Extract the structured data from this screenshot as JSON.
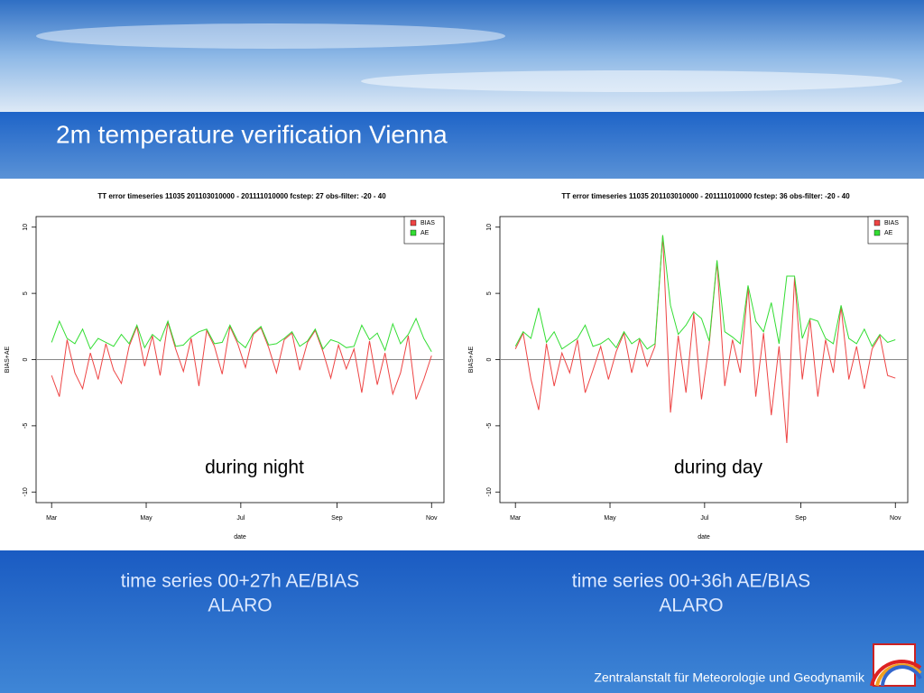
{
  "title": "2m temperature verification Vienna",
  "captions": [
    [
      "time series 00+27h AE/BIAS",
      "ALARO"
    ],
    [
      "time series 00+36h AE/BIAS",
      "ALARO"
    ]
  ],
  "footer": "Zentralanstalt für Meteorologie und Geodynamik",
  "chart_data": [
    {
      "type": "line",
      "title": "TT error timeseries  11035 201103010000 - 201111010000  fcstep:  27  obs-filter: -20 - 40",
      "annotation": "during night",
      "x_label": "date",
      "y_label": "BIAS+AE",
      "x": [
        0,
        5,
        10,
        15,
        20,
        25,
        30,
        35,
        40,
        45,
        50,
        55,
        60,
        65,
        70,
        75,
        80,
        85,
        90,
        95,
        100,
        105,
        110,
        115,
        120,
        125,
        130,
        135,
        140,
        145,
        150,
        155,
        160,
        165,
        170,
        175,
        180,
        185,
        190,
        195,
        200,
        205,
        210,
        215,
        220,
        225,
        230,
        235,
        240,
        245
      ],
      "xlim": [
        -10,
        253
      ],
      "xticks": [
        {
          "value": 0,
          "label": "Mar"
        },
        {
          "value": 61,
          "label": "May"
        },
        {
          "value": 122,
          "label": "Jul"
        },
        {
          "value": 184,
          "label": "Sep"
        },
        {
          "value": 245,
          "label": "Nov"
        }
      ],
      "ylim": [
        -10.8,
        10.8
      ],
      "yticks": [
        -10,
        -5,
        0,
        5,
        10
      ],
      "hline": 0,
      "legend": "top right",
      "series": [
        {
          "name": "BIAS",
          "color": "#ee4444",
          "values": [
            -1.2,
            -2.8,
            1.5,
            -1.0,
            -2.2,
            0.5,
            -1.5,
            1.2,
            -0.8,
            -1.8,
            1.0,
            2.5,
            -0.5,
            1.8,
            -1.2,
            2.8,
            0.8,
            -0.9,
            1.6,
            -2.0,
            2.2,
            1.0,
            -1.1,
            2.5,
            1.2,
            -0.6,
            1.9,
            2.4,
            0.9,
            -1.0,
            1.5,
            2.0,
            -0.8,
            1.3,
            2.2,
            0.6,
            -1.4,
            1.1,
            -0.7,
            0.8,
            -2.5,
            1.4,
            -1.9,
            0.5,
            -2.6,
            -1.0,
            1.8,
            -3.0,
            -1.5,
            0.3
          ]
        },
        {
          "name": "AE",
          "color": "#33dd33",
          "values": [
            1.3,
            2.9,
            1.6,
            1.2,
            2.3,
            0.8,
            1.6,
            1.3,
            1.0,
            1.9,
            1.2,
            2.6,
            0.9,
            1.9,
            1.4,
            2.9,
            1.0,
            1.1,
            1.7,
            2.1,
            2.3,
            1.2,
            1.3,
            2.6,
            1.4,
            0.9,
            2.0,
            2.5,
            1.1,
            1.2,
            1.6,
            2.1,
            1.0,
            1.4,
            2.3,
            0.8,
            1.5,
            1.3,
            0.9,
            1.0,
            2.6,
            1.5,
            2.0,
            0.7,
            2.7,
            1.2,
            1.9,
            3.1,
            1.6,
            0.6
          ]
        }
      ]
    },
    {
      "type": "line",
      "title": "TT error timeseries  11035 201103010000 - 201111010000  fcstep:  36  obs-filter: -20 - 40",
      "annotation": "during day",
      "x_label": "date",
      "y_label": "BIAS+AE",
      "x": [
        0,
        5,
        10,
        15,
        20,
        25,
        30,
        35,
        40,
        45,
        50,
        55,
        60,
        65,
        70,
        75,
        80,
        85,
        90,
        95,
        100,
        105,
        110,
        115,
        120,
        125,
        130,
        135,
        140,
        145,
        150,
        155,
        160,
        165,
        170,
        175,
        180,
        185,
        190,
        195,
        200,
        205,
        210,
        215,
        220,
        225,
        230,
        235,
        240,
        245
      ],
      "xlim": [
        -10,
        253
      ],
      "xticks": [
        {
          "value": 0,
          "label": "Mar"
        },
        {
          "value": 61,
          "label": "May"
        },
        {
          "value": 122,
          "label": "Jul"
        },
        {
          "value": 184,
          "label": "Sep"
        },
        {
          "value": 245,
          "label": "Nov"
        }
      ],
      "ylim": [
        -10.8,
        10.8
      ],
      "yticks": [
        -10,
        -5,
        0,
        5,
        10
      ],
      "hline": 0,
      "legend": "top right",
      "series": [
        {
          "name": "BIAS",
          "color": "#ee4444",
          "values": [
            0.8,
            2.0,
            -1.5,
            -3.8,
            1.2,
            -2.0,
            0.5,
            -1.0,
            1.5,
            -2.5,
            -0.8,
            1.0,
            -1.5,
            0.6,
            2.0,
            -1.0,
            1.5,
            -0.5,
            1.0,
            9.4,
            -4.0,
            1.8,
            -2.5,
            3.5,
            -3.0,
            1.2,
            7.4,
            -2.0,
            1.5,
            -1.0,
            5.5,
            -2.8,
            2.0,
            -4.2,
            1.0,
            -6.3,
            6.2,
            -1.5,
            3.0,
            -2.8,
            1.5,
            -1.0,
            4.0,
            -1.5,
            1.0,
            -2.2,
            0.8,
            1.8,
            -1.2,
            -1.4
          ]
        },
        {
          "name": "AE",
          "color": "#33dd33",
          "values": [
            1.0,
            2.1,
            1.6,
            3.9,
            1.3,
            2.1,
            0.8,
            1.2,
            1.6,
            2.6,
            1.0,
            1.2,
            1.6,
            0.9,
            2.1,
            1.2,
            1.6,
            0.8,
            1.2,
            9.4,
            4.1,
            1.9,
            2.6,
            3.6,
            3.1,
            1.4,
            7.5,
            2.1,
            1.7,
            1.2,
            5.6,
            2.9,
            2.1,
            4.3,
            1.2,
            6.3,
            6.3,
            1.6,
            3.1,
            2.9,
            1.6,
            1.2,
            4.1,
            1.6,
            1.2,
            2.3,
            1.0,
            1.9,
            1.3,
            1.5
          ]
        }
      ]
    }
  ]
}
